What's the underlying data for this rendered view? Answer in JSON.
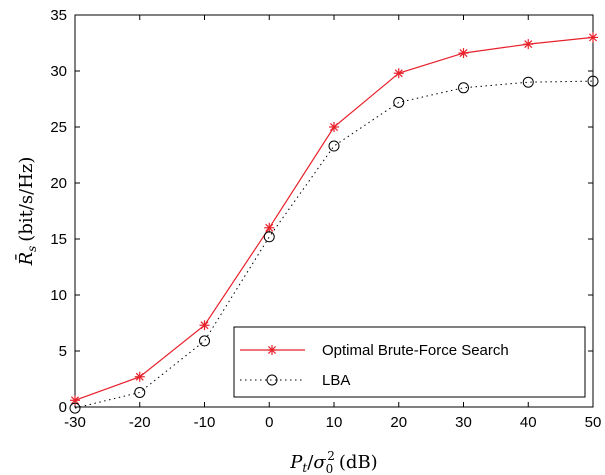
{
  "chart_data": {
    "type": "line",
    "x": [
      -30,
      -20,
      -10,
      0,
      10,
      20,
      30,
      40,
      50
    ],
    "xticks": [
      "-30",
      "-20",
      "-10",
      "0",
      "10",
      "20",
      "30",
      "40",
      "50"
    ],
    "yticks": [
      "0",
      "5",
      "10",
      "15",
      "20",
      "25",
      "30",
      "35"
    ],
    "xlim": [
      -30,
      50
    ],
    "ylim": [
      0,
      35
    ],
    "xlabel": "P_t/σ_0^2 (dB)",
    "ylabel": "R̄_s (bit/s/Hz)",
    "grid": false,
    "legend_position": "bottom-right",
    "series": [
      {
        "name": "Optimal Brute-Force Search",
        "color": "#e8202a",
        "line_style": "solid",
        "marker": "asterisk",
        "values": [
          0.6,
          2.7,
          7.3,
          16.0,
          25.0,
          29.8,
          31.6,
          32.4,
          33.0
        ]
      },
      {
        "name": "LBA",
        "color": "#000000",
        "line_style": "dotted",
        "marker": "circle",
        "values": [
          -0.1,
          1.3,
          5.9,
          15.2,
          23.3,
          27.2,
          28.5,
          29.0,
          29.1
        ]
      }
    ]
  }
}
